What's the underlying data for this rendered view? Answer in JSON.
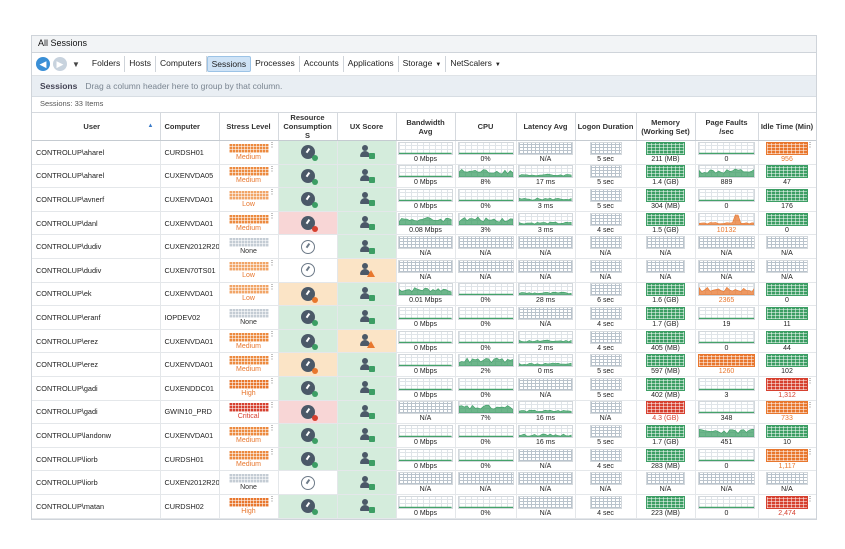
{
  "window": {
    "title": "All Sessions"
  },
  "toolbar": {
    "items": [
      {
        "label": "Folders",
        "active": false,
        "dropdown": false
      },
      {
        "label": "Hosts",
        "active": false,
        "dropdown": false
      },
      {
        "label": "Computers",
        "active": false,
        "dropdown": false
      },
      {
        "label": "Sessions",
        "active": true,
        "dropdown": false
      },
      {
        "label": "Processes",
        "active": false,
        "dropdown": false
      },
      {
        "label": "Accounts",
        "active": false,
        "dropdown": false
      },
      {
        "label": "Applications",
        "active": false,
        "dropdown": false
      },
      {
        "label": "Storage",
        "active": false,
        "dropdown": true
      },
      {
        "label": "NetScalers",
        "active": false,
        "dropdown": true
      }
    ]
  },
  "groupbar": {
    "label": "Sessions",
    "hint": "Drag a column header here to group by that column."
  },
  "count": "Sessions: 33 Items",
  "columns": [
    "User",
    "Computer",
    "Stress Level",
    "Resource Consumption S",
    "UX Score",
    "Bandwidth Avg",
    "CPU",
    "Latency Avg",
    "Logon Duration",
    "Memory (Working Set)",
    "Page Faults /sec",
    "Idle Time (Min)"
  ],
  "colors": {
    "green": "#3c9e64",
    "orange": "#e8772e",
    "red": "#d6402f",
    "grey": "#9aa4ae",
    "rc_ok": "#d4ecdc",
    "rc_warn": "#fbe4c6",
    "rc_crit": "#f8d6d6"
  },
  "rows": [
    {
      "user": "CONTROLUP\\aharel",
      "computer": "CURDSH01",
      "stress": "Medium",
      "rc": "ok",
      "ux": "ok",
      "bandwidth": "0 Mbps",
      "cpu": "0%",
      "latency": "N/A",
      "logon": "5 sec",
      "memory": "211 (MB)",
      "pf": "0",
      "idle": "956",
      "idle_state": "orange",
      "mem_state": "green",
      "pf_state": "none"
    },
    {
      "user": "CONTROLUP\\aharel",
      "computer": "CUXENVDA05",
      "stress": "Medium",
      "rc": "ok",
      "ux": "ok",
      "bandwidth": "0 Mbps",
      "cpu": "8%",
      "latency": "17 ms",
      "logon": "5 sec",
      "memory": "1.4 (GB)",
      "pf": "889",
      "idle": "47",
      "idle_state": "green",
      "mem_state": "green",
      "pf_state": "spark"
    },
    {
      "user": "CONTROLUP\\avnerf",
      "computer": "CUXENVDA01",
      "stress": "Low",
      "rc": "ok",
      "ux": "ok",
      "bandwidth": "0 Mbps",
      "cpu": "0%",
      "latency": "3 ms",
      "logon": "5 sec",
      "memory": "304 (MB)",
      "pf": "0",
      "idle": "176",
      "idle_state": "green",
      "mem_state": "green",
      "pf_state": "none"
    },
    {
      "user": "CONTROLUP\\danl",
      "computer": "CUXENVDA01",
      "stress": "Medium",
      "rc": "crit",
      "ux": "ok",
      "bandwidth": "0.08 Mbps",
      "cpu": "3%",
      "latency": "3 ms",
      "logon": "4 sec",
      "memory": "1.5 (GB)",
      "pf": "10132",
      "idle": "0",
      "idle_state": "green",
      "mem_state": "green",
      "pf_state": "orange"
    },
    {
      "user": "CONTROLUP\\dudiv",
      "computer": "CUXEN2012R202",
      "stress": "None",
      "rc": "none",
      "ux": "ok",
      "bandwidth": "N/A",
      "cpu": "N/A",
      "latency": "N/A",
      "logon": "N/A",
      "memory": "N/A",
      "pf": "N/A",
      "idle": "N/A",
      "idle_state": "grey",
      "mem_state": "grey",
      "pf_state": "grey"
    },
    {
      "user": "CONTROLUP\\dudiv",
      "computer": "CUXEN70TS01",
      "stress": "Low",
      "rc": "none",
      "ux": "warn",
      "bandwidth": "N/A",
      "cpu": "N/A",
      "latency": "N/A",
      "logon": "N/A",
      "memory": "N/A",
      "pf": "N/A",
      "idle": "N/A",
      "idle_state": "grey",
      "mem_state": "grey",
      "pf_state": "grey"
    },
    {
      "user": "CONTROLUP\\ek",
      "computer": "CUXENVDA01",
      "stress": "Low",
      "rc": "warn",
      "ux": "ok",
      "bandwidth": "0.01 Mbps",
      "cpu": "0%",
      "latency": "28 ms",
      "logon": "6 sec",
      "memory": "1.6 (GB)",
      "pf": "2365",
      "idle": "0",
      "idle_state": "green",
      "mem_state": "green",
      "pf_state": "orange"
    },
    {
      "user": "CONTROLUP\\eranf",
      "computer": "IOPDEV02",
      "stress": "None",
      "rc": "ok",
      "ux": "ok",
      "bandwidth": "0 Mbps",
      "cpu": "0%",
      "latency": "N/A",
      "logon": "4 sec",
      "memory": "1.7 (GB)",
      "pf": "19",
      "idle": "11",
      "idle_state": "green",
      "mem_state": "green",
      "pf_state": "none"
    },
    {
      "user": "CONTROLUP\\erez",
      "computer": "CUXENVDA01",
      "stress": "Medium",
      "rc": "ok",
      "ux": "warn",
      "bandwidth": "0 Mbps",
      "cpu": "0%",
      "latency": "2 ms",
      "logon": "4 sec",
      "memory": "405 (MB)",
      "pf": "0",
      "idle": "44",
      "idle_state": "green",
      "mem_state": "green",
      "pf_state": "none"
    },
    {
      "user": "CONTROLUP\\erez",
      "computer": "CUXENVDA01",
      "stress": "Medium",
      "rc": "warn",
      "ux": "ok",
      "bandwidth": "0 Mbps",
      "cpu": "2%",
      "latency": "0 ms",
      "logon": "5 sec",
      "memory": "597 (MB)",
      "pf": "1260",
      "idle": "102",
      "idle_state": "green",
      "mem_state": "green",
      "pf_state": "orange"
    },
    {
      "user": "CONTROLUP\\gadi",
      "computer": "CUXENDDC01",
      "stress": "High",
      "rc": "ok",
      "ux": "ok",
      "bandwidth": "0 Mbps",
      "cpu": "0%",
      "latency": "N/A",
      "logon": "5 sec",
      "memory": "402 (MB)",
      "pf": "3",
      "idle": "1,312",
      "idle_state": "red",
      "mem_state": "green",
      "pf_state": "none"
    },
    {
      "user": "CONTROLUP\\gadi",
      "computer": "GWIN10_PRD",
      "stress": "Critical",
      "rc": "crit",
      "ux": "ok",
      "bandwidth": "N/A",
      "cpu": "7%",
      "latency": "16 ms",
      "logon": "N/A",
      "memory": "4.3 (GB)",
      "pf": "348",
      "idle": "733",
      "idle_state": "orange",
      "mem_state": "red",
      "pf_state": "none"
    },
    {
      "user": "CONTROLUP\\landonw",
      "computer": "CUXENVDA01",
      "stress": "Medium",
      "rc": "ok",
      "ux": "ok",
      "bandwidth": "0 Mbps",
      "cpu": "0%",
      "latency": "16 ms",
      "logon": "5 sec",
      "memory": "1.7 (GB)",
      "pf": "451",
      "idle": "10",
      "idle_state": "green",
      "mem_state": "green",
      "pf_state": "spark"
    },
    {
      "user": "CONTROLUP\\liorb",
      "computer": "CURDSH01",
      "stress": "Medium",
      "rc": "ok",
      "ux": "ok",
      "bandwidth": "0 Mbps",
      "cpu": "0%",
      "latency": "N/A",
      "logon": "4 sec",
      "memory": "283 (MB)",
      "pf": "0",
      "idle": "1,117",
      "idle_state": "orange",
      "mem_state": "green",
      "pf_state": "none"
    },
    {
      "user": "CONTROLUP\\liorb",
      "computer": "CUXEN2012R202",
      "stress": "None",
      "rc": "none",
      "ux": "ok",
      "bandwidth": "N/A",
      "cpu": "N/A",
      "latency": "N/A",
      "logon": "N/A",
      "memory": "N/A",
      "pf": "N/A",
      "idle": "N/A",
      "idle_state": "grey",
      "mem_state": "grey",
      "pf_state": "grey"
    },
    {
      "user": "CONTROLUP\\matan",
      "computer": "CURDSH02",
      "stress": "High",
      "rc": "ok",
      "ux": "ok",
      "bandwidth": "0 Mbps",
      "cpu": "0%",
      "latency": "N/A",
      "logon": "4 sec",
      "memory": "223 (MB)",
      "pf": "0",
      "idle": "2,474",
      "idle_state": "red",
      "mem_state": "green",
      "pf_state": "none"
    }
  ]
}
